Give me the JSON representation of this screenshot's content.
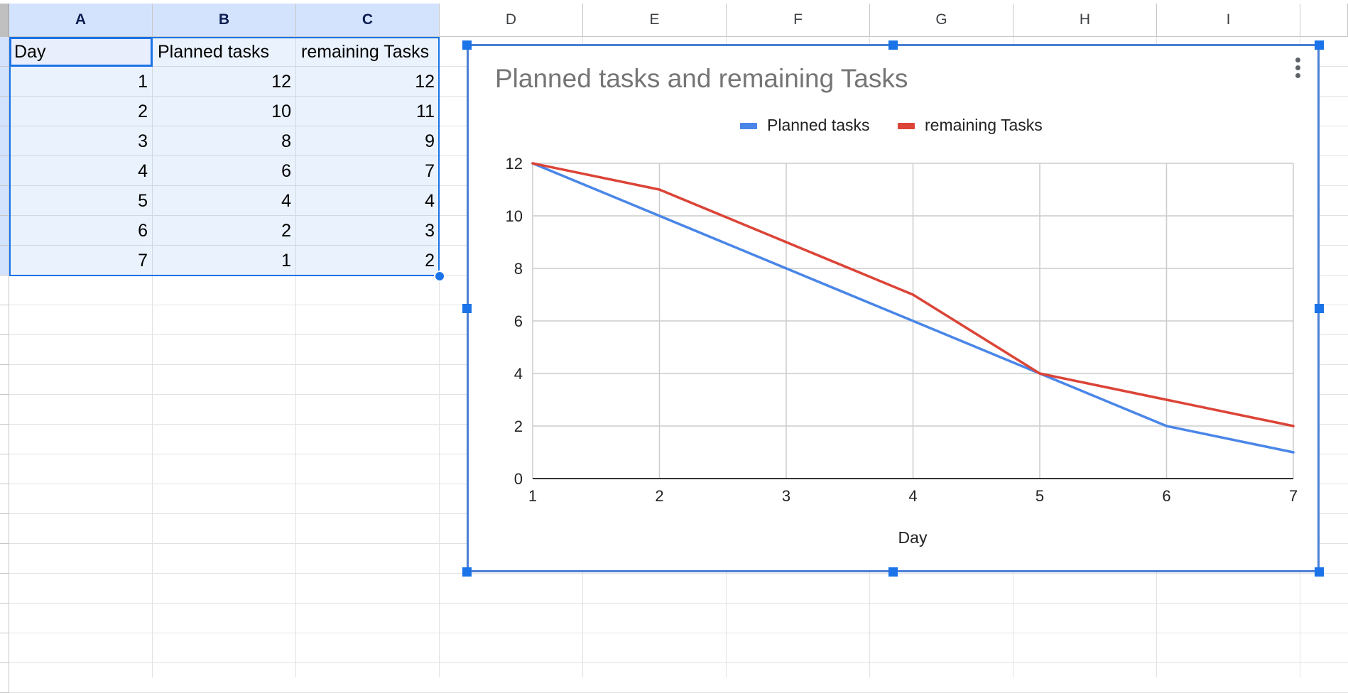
{
  "sheet": {
    "columns": [
      "A",
      "B",
      "C",
      "D",
      "E",
      "F",
      "G",
      "H",
      "I"
    ],
    "selected_columns": [
      "A",
      "B",
      "C"
    ],
    "header_row": [
      "Day",
      "Planned tasks",
      "remaining Tasks"
    ],
    "rows": [
      [
        "1",
        "12",
        "12"
      ],
      [
        "2",
        "10",
        "11"
      ],
      [
        "3",
        "8",
        "9"
      ],
      [
        "4",
        "6",
        "7"
      ],
      [
        "5",
        "4",
        "4"
      ],
      [
        "6",
        "2",
        "3"
      ],
      [
        "7",
        "1",
        "2"
      ]
    ]
  },
  "chart_data": {
    "type": "line",
    "title": "Planned tasks and remaining Tasks",
    "xlabel": "Day",
    "ylabel": "",
    "x": [
      1,
      2,
      3,
      4,
      5,
      6,
      7
    ],
    "x_ticks": [
      "1",
      "2",
      "3",
      "4",
      "5",
      "6",
      "7"
    ],
    "y_ticks": [
      "0",
      "2",
      "4",
      "6",
      "8",
      "10",
      "12"
    ],
    "ylim": [
      0,
      12
    ],
    "xlim": [
      1,
      7
    ],
    "grid": true,
    "legend_position": "top",
    "series": [
      {
        "name": "Planned tasks",
        "color": "#4a86e8",
        "values": [
          12,
          10,
          8,
          6,
          4,
          2,
          1
        ]
      },
      {
        "name": "remaining Tasks",
        "color": "#db4437",
        "values": [
          12,
          11,
          9,
          7,
          4,
          3,
          2
        ]
      }
    ],
    "menu_icon": "more-vert-icon"
  }
}
